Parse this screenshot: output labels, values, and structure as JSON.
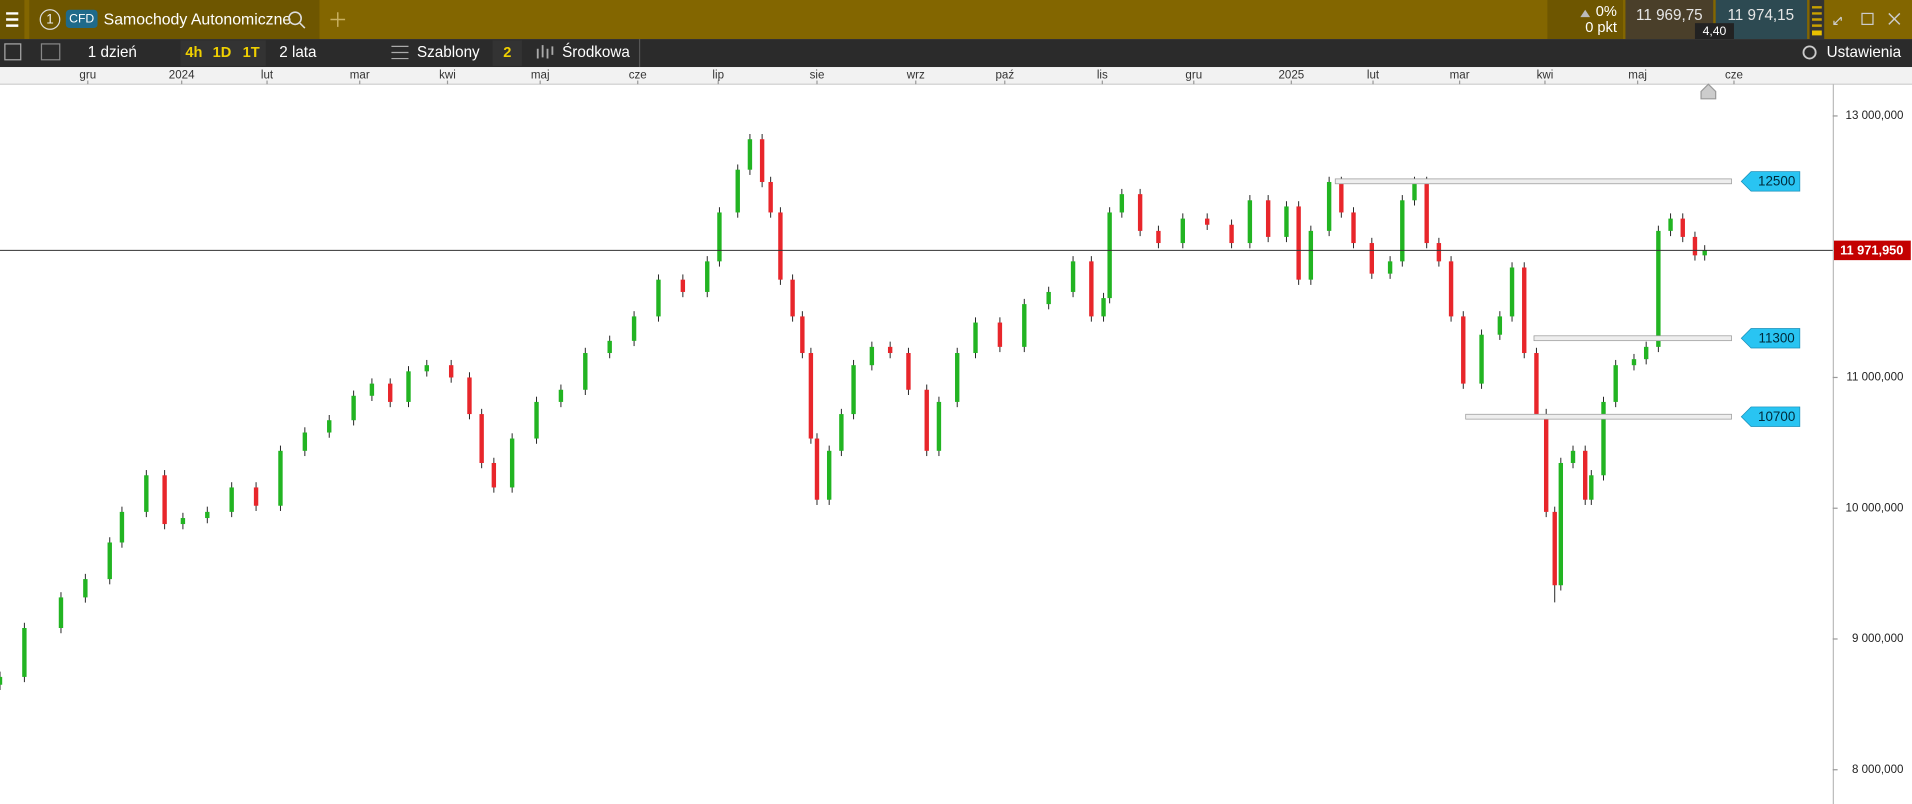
{
  "header": {
    "tab_number": "1",
    "badge": "CFD",
    "instrument": "Samochody Autonomiczne",
    "change_pct": "0%",
    "change_pts": "0 pkt",
    "bid": "11 969,75",
    "ask": "11 974,15",
    "spread": "4,40"
  },
  "toolbar": {
    "layout": "1 dzień",
    "intervals": [
      "4h",
      "1D",
      "1T"
    ],
    "range": "2 lata",
    "templates": "Szablony",
    "templates_count": "2",
    "indicator": "Środkowa",
    "settings": "Ustawienia"
  },
  "chart_data": {
    "type": "candlestick",
    "up_color": "#22b422",
    "down_color": "#e8262b",
    "xlim": [
      0,
      1503
    ],
    "ylim": [
      7738,
      13243
    ],
    "xticks": [
      {
        "value": 72,
        "label": "gru"
      },
      {
        "value": 149,
        "label": "2024"
      },
      {
        "value": 219,
        "label": "lut"
      },
      {
        "value": 295,
        "label": "mar"
      },
      {
        "value": 367,
        "label": "kwi"
      },
      {
        "value": 443,
        "label": "maj"
      },
      {
        "value": 523,
        "label": "cze"
      },
      {
        "value": 589,
        "label": "lip"
      },
      {
        "value": 670,
        "label": "sie"
      },
      {
        "value": 751,
        "label": "wrz"
      },
      {
        "value": 824,
        "label": "paź"
      },
      {
        "value": 904,
        "label": "lis"
      },
      {
        "value": 979,
        "label": "gru"
      },
      {
        "value": 1059,
        "label": "2025"
      },
      {
        "value": 1126,
        "label": "lut"
      },
      {
        "value": 1197,
        "label": "mar"
      },
      {
        "value": 1267,
        "label": "kwi"
      },
      {
        "value": 1343,
        "label": "maj"
      },
      {
        "value": 1422,
        "label": "cze"
      }
    ],
    "yticks": [
      {
        "value": 13000,
        "label": "13 000,000"
      },
      {
        "value": 11000,
        "label": "11 000,000"
      },
      {
        "value": 10000,
        "label": "10 000,000"
      },
      {
        "value": 9000,
        "label": "9 000,000"
      },
      {
        "value": 8000,
        "label": "8 000,000"
      }
    ],
    "current_price": {
      "value": 11971.95,
      "label": "11 971,950"
    },
    "levels": [
      {
        "value": 12500,
        "x_start": 1095
      },
      {
        "value": 11300,
        "x_start": 1258
      },
      {
        "value": 10700,
        "x_start": 1202
      }
    ],
    "x": [
      0,
      20,
      50,
      70,
      90,
      100,
      120,
      135,
      150,
      170,
      190,
      210,
      230,
      250,
      270,
      290,
      305,
      320,
      335,
      350,
      370,
      385,
      395,
      405,
      420,
      440,
      460,
      480,
      500,
      520,
      540,
      560,
      580,
      590,
      605,
      615,
      625,
      632,
      640,
      650,
      658,
      665,
      670,
      680,
      690,
      700,
      715,
      730,
      745,
      760,
      770,
      785,
      800,
      820,
      840,
      860,
      880,
      895,
      905,
      910,
      920,
      935,
      950,
      970,
      990,
      1010,
      1025,
      1040,
      1055,
      1065,
      1075,
      1090,
      1100,
      1110,
      1125,
      1140,
      1150,
      1160,
      1170,
      1180,
      1190,
      1200,
      1215,
      1230,
      1240,
      1250,
      1260,
      1268,
      1275,
      1280,
      1290,
      1300,
      1305,
      1315,
      1325,
      1340,
      1350,
      1360,
      1370,
      1380,
      1390,
      1398
    ],
    "open": [
      8650,
      8710,
      9084,
      9318,
      9458,
      9738,
      9972,
      10252,
      9879,
      9925,
      9972,
      10159,
      10019,
      10439,
      10579,
      10673,
      10860,
      10953,
      10813,
      11047,
      11094,
      11000,
      10720,
      10346,
      10159,
      10533,
      10813,
      10906,
      11187,
      11280,
      11467,
      11748,
      11654,
      11888,
      12262,
      12589,
      12822,
      12495,
      12262,
      11748,
      11467,
      11187,
      10533,
      10065,
      10439,
      10720,
      11094,
      11234,
      11187,
      10906,
      10439,
      10813,
      11187,
      11420,
      11234,
      11561,
      11654,
      11888,
      11467,
      11607,
      12262,
      12402,
      12121,
      12028,
      12215,
      12168,
      12028,
      12355,
      12075,
      12308,
      11748,
      12121,
      12495,
      12262,
      12028,
      11794,
      11888,
      12355,
      12495,
      12028,
      11888,
      11467,
      10953,
      11327,
      11467,
      11841,
      11187,
      10720,
      9972,
      9411,
      10346,
      10439,
      10065,
      10252,
      10813,
      11094,
      11140,
      11234,
      12121,
      12215,
      12075,
      11934
    ],
    "high": [
      8750,
      9124,
      9358,
      9498,
      9778,
      10012,
      10292,
      10292,
      9965,
      10012,
      10199,
      10199,
      10479,
      10619,
      10713,
      10900,
      10993,
      10993,
      11087,
      11134,
      11134,
      11040,
      10760,
      10386,
      10573,
      10853,
      10946,
      11227,
      11320,
      11507,
      11788,
      11788,
      11928,
      12302,
      12629,
      12862,
      12862,
      12535,
      12302,
      11788,
      11507,
      11227,
      10573,
      10479,
      10760,
      11134,
      11274,
      11274,
      11227,
      10946,
      10853,
      11227,
      11460,
      11460,
      11601,
      11694,
      11928,
      11928,
      11647,
      12302,
      12442,
      12442,
      12161,
      12255,
      12255,
      12208,
      12395,
      12395,
      12348,
      12348,
      12161,
      12535,
      12535,
      12302,
      12068,
      11928,
      12395,
      12535,
      12535,
      12068,
      11928,
      11507,
      11367,
      11507,
      11881,
      11881,
      11227,
      10760,
      10012,
      10386,
      10479,
      10479,
      10292,
      10853,
      11134,
      11180,
      11274,
      12161,
      12255,
      12255,
      12115,
      12012
    ],
    "low": [
      8610,
      8670,
      9044,
      9278,
      9418,
      9698,
      9932,
      9839,
      9839,
      9885,
      9932,
      9979,
      9979,
      10399,
      10539,
      10633,
      10820,
      10773,
      10773,
      11007,
      10960,
      10680,
      10306,
      10119,
      10119,
      10493,
      10773,
      10866,
      11147,
      11240,
      11427,
      11614,
      11614,
      11848,
      12222,
      12549,
      12455,
      12222,
      11708,
      11427,
      11147,
      10493,
      10025,
      10025,
      10399,
      10680,
      11054,
      11147,
      10866,
      10399,
      10399,
      10773,
      11147,
      11194,
      11194,
      11521,
      11614,
      11427,
      11427,
      11567,
      12222,
      12081,
      11988,
      11988,
      12128,
      11988,
      11988,
      12035,
      12035,
      11708,
      11708,
      12081,
      12222,
      11988,
      11754,
      11754,
      11848,
      12315,
      11988,
      11848,
      11427,
      10913,
      10913,
      11287,
      11427,
      11147,
      10680,
      9932,
      9280,
      9371,
      10306,
      10025,
      10025,
      10212,
      10773,
      11054,
      11100,
      11194,
      12081,
      12035,
      11894,
      11894
    ],
    "close": [
      8710,
      9084,
      9318,
      9458,
      9738,
      9972,
      10252,
      9879,
      9925,
      9972,
      10159,
      10019,
      10439,
      10579,
      10673,
      10860,
      10953,
      10813,
      11047,
      11094,
      11000,
      10720,
      10346,
      10159,
      10533,
      10813,
      10906,
      11187,
      11280,
      11467,
      11748,
      11654,
      11888,
      12262,
      12589,
      12822,
      12495,
      12262,
      11748,
      11467,
      11187,
      10533,
      10065,
      10439,
      10720,
      11094,
      11234,
      11187,
      10906,
      10439,
      10813,
      11187,
      11420,
      11234,
      11561,
      11654,
      11888,
      11467,
      11607,
      12262,
      12402,
      12121,
      12028,
      12215,
      12168,
      12028,
      12355,
      12075,
      12308,
      11748,
      12121,
      12495,
      12262,
      12028,
      11794,
      11888,
      12355,
      12495,
      12028,
      11888,
      11467,
      10953,
      11327,
      11467,
      11841,
      11187,
      10720,
      9972,
      9411,
      10346,
      10439,
      10065,
      10252,
      10813,
      11094,
      11140,
      11234,
      12121,
      12215,
      12075,
      11934,
      11972
    ]
  }
}
